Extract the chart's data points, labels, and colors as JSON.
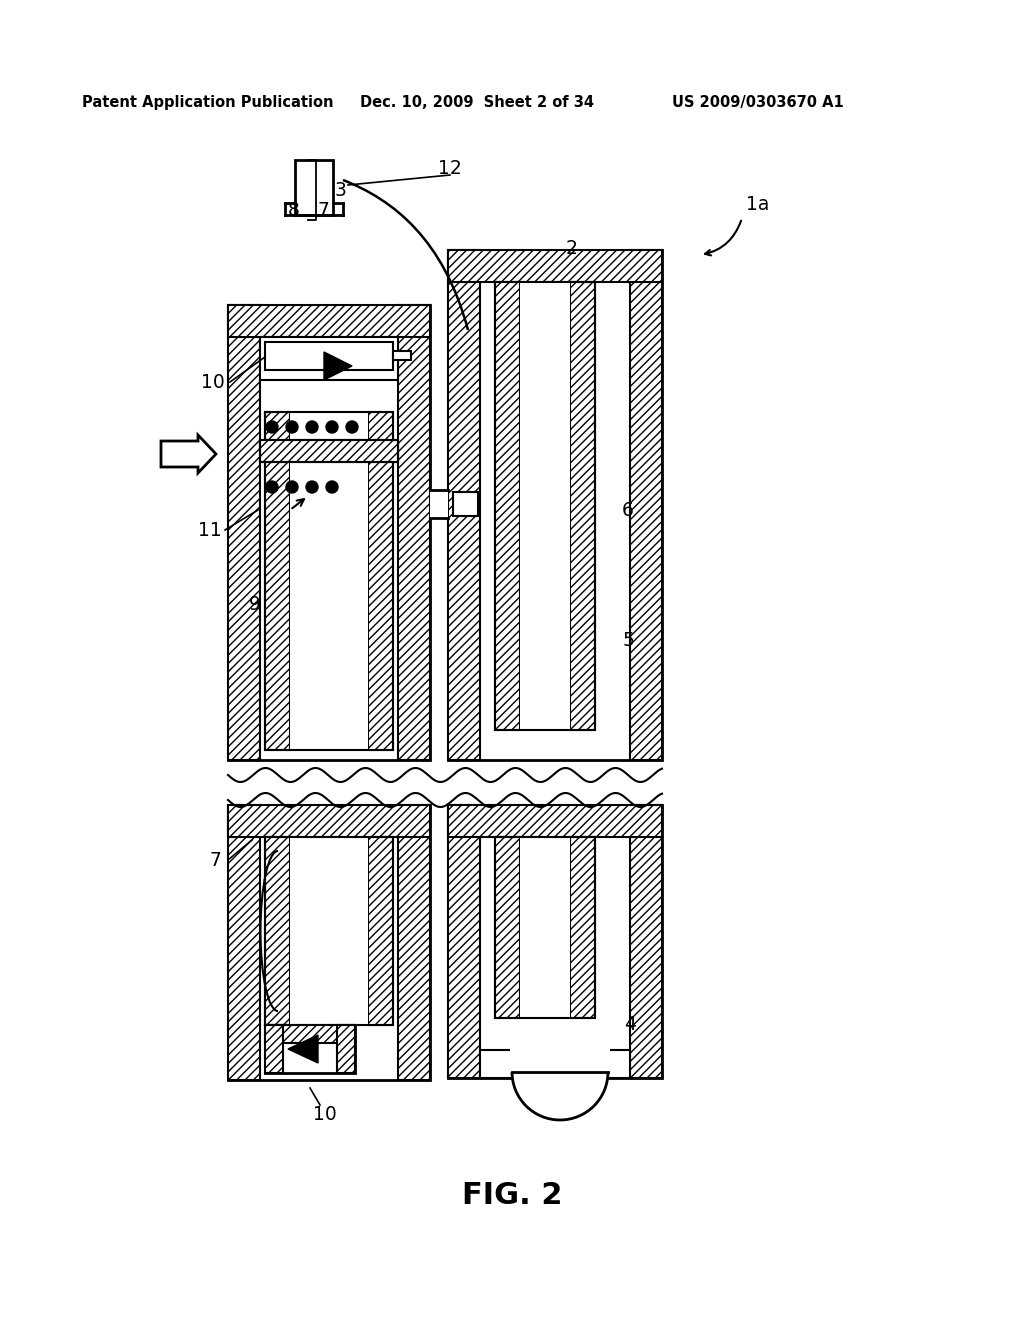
{
  "title": "FIG. 2",
  "header_left": "Patent Application Publication",
  "header_mid": "Dec. 10, 2009  Sheet 2 of 34",
  "header_right": "US 2009/0303670 A1",
  "bg_color": "#ffffff"
}
